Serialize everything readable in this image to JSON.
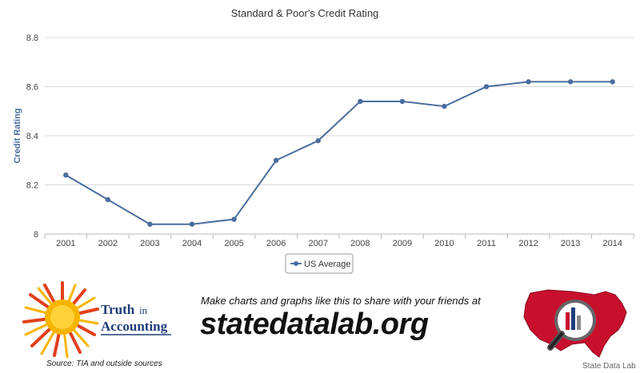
{
  "chart_data": {
    "type": "line",
    "title": "Standard & Poor's Credit Rating",
    "xlabel": "",
    "ylabel": "Credit Rating",
    "categories": [
      "2001",
      "2002",
      "2003",
      "2004",
      "2005",
      "2006",
      "2007",
      "2008",
      "2009",
      "2010",
      "2011",
      "2012",
      "2013",
      "2014"
    ],
    "series": [
      {
        "name": "US Average",
        "color": "#4a6e9e",
        "values": [
          8.24,
          8.14,
          8.04,
          8.04,
          8.06,
          8.3,
          8.38,
          8.54,
          8.54,
          8.52,
          8.6,
          8.62,
          8.62,
          8.62
        ]
      }
    ],
    "ylim": [
      8.0,
      8.8
    ],
    "yticks": [
      "8",
      "8.2",
      "8.4",
      "8.6",
      "8.8"
    ],
    "grid": true,
    "legend": "bottom-center"
  },
  "footer": {
    "tia_line1": "Truth",
    "tia_line1_suffix": "in",
    "tia_line2": "Accounting",
    "tia_source": "Source: TIA and outside sources",
    "tagline": "Make charts and graphs like this to share with your friends at",
    "url": "statedatalab.org",
    "credit": "State Data Lab"
  },
  "colors": {
    "line": "#4a6e9e",
    "grid": "#d8d8d8",
    "title": "#333333",
    "ylabel": "#4a6e9e",
    "sun": "#f7b500",
    "rays": "#e2401c",
    "map": "#c8102e"
  }
}
